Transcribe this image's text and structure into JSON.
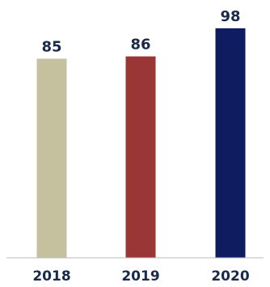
{
  "chart_data": {
    "type": "bar",
    "categories": [
      "2018",
      "2019",
      "2020"
    ],
    "values": [
      85,
      86,
      98
    ],
    "bar_colors": [
      "#c5c09e",
      "#9b3636",
      "#101c60"
    ],
    "title": "",
    "xlabel": "",
    "ylabel": "",
    "ylim": [
      0,
      100
    ],
    "grid": false,
    "data_labels": true
  },
  "colors": {
    "axis": "#bbbbbb",
    "label": "#1a2a4a"
  }
}
